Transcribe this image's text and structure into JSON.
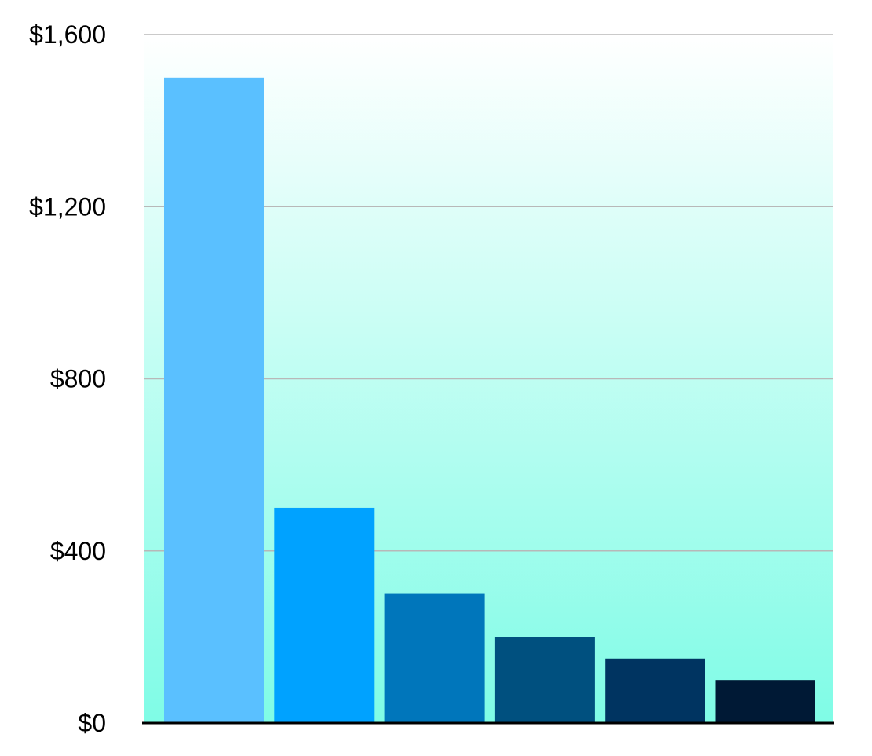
{
  "chart_data": {
    "type": "bar",
    "title": "",
    "xlabel": "",
    "ylabel": "",
    "categories": [
      "",
      "",
      "",
      "",
      "",
      ""
    ],
    "values": [
      1500,
      500,
      300,
      200,
      150,
      100
    ],
    "colors": [
      "#5ac0ff",
      "#00a2ff",
      "#0076bb",
      "#00507f",
      "#003461",
      "#001935"
    ],
    "ylim": [
      0,
      1600
    ],
    "yticks": [
      0,
      400,
      800,
      1200,
      1600
    ],
    "ytick_labels": [
      "$0",
      "$400",
      "$800",
      "$1,200",
      "$1,600"
    ],
    "grid": true,
    "legend": "none",
    "background_gradient": [
      "#ffffff",
      "#7ffce6"
    ]
  }
}
